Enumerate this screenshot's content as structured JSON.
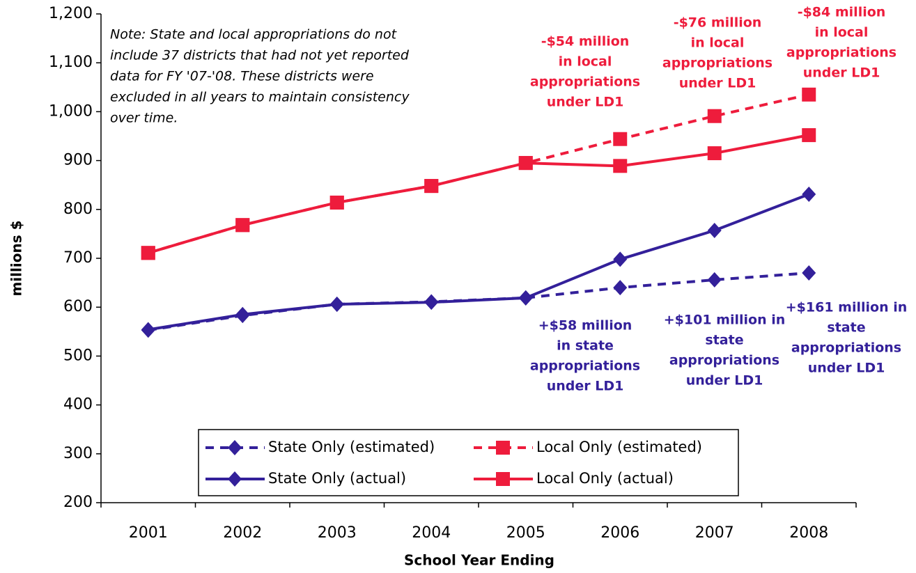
{
  "chart_data": {
    "type": "line",
    "x_label": "School Year Ending",
    "y_label": "millions $",
    "categories": [
      "2001",
      "2002",
      "2003",
      "2004",
      "2005",
      "2006",
      "2007",
      "2008"
    ],
    "ylim": [
      200,
      1200
    ],
    "yticks": [
      200,
      300,
      400,
      500,
      600,
      700,
      800,
      900,
      {
        "value": 1000,
        "label": "1,000"
      },
      {
        "value": 1100,
        "label": "1,100"
      },
      {
        "value": 1200,
        "label": "1,200"
      }
    ],
    "grid": false,
    "series": [
      {
        "name": "State Only (estimated)",
        "color": "#33209a",
        "dashed": true,
        "marker": "diamond",
        "values": [
          553,
          583,
          606,
          611,
          619,
          640,
          656,
          670
        ]
      },
      {
        "name": "Local Only (estimated)",
        "color": "#ee1c3c",
        "dashed": true,
        "marker": "square",
        "values": [
          711,
          768,
          814,
          848,
          895,
          944,
          991,
          1035
        ]
      },
      {
        "name": "State Only (actual)",
        "color": "#33209a",
        "dashed": false,
        "marker": "diamond",
        "values": [
          554,
          585,
          606,
          610,
          619,
          698,
          757,
          831
        ]
      },
      {
        "name": "Local Only (actual)",
        "color": "#ee1c3c",
        "dashed": false,
        "marker": "square",
        "values": [
          711,
          768,
          814,
          848,
          895,
          889,
          915,
          952
        ]
      }
    ],
    "note": [
      "Note:  State and local appropriations do not",
      "include 37 districts that had not yet reported",
      "data for FY '07-'08.  These districts were",
      "excluded in all years to maintain consistency",
      "over time."
    ],
    "annotations": [
      {
        "color": "#ee1c3c",
        "lines": [
          "-$54 million",
          "in local",
          "appropriations",
          "under LD1"
        ]
      },
      {
        "color": "#ee1c3c",
        "lines": [
          "-$76 million",
          "in local",
          "appropriations",
          "under LD1"
        ]
      },
      {
        "color": "#ee1c3c",
        "lines": [
          "-$84 million",
          "in local",
          "appropriations",
          "under LD1"
        ]
      },
      {
        "color": "#33209a",
        "lines": [
          "+$58 million",
          "in state",
          "appropriations",
          "under LD1"
        ]
      },
      {
        "color": "#33209a",
        "lines": [
          "+$101 million in",
          "state",
          "appropriations",
          "under LD1"
        ]
      },
      {
        "color": "#33209a",
        "lines": [
          "+$161 million in",
          "state",
          "appropriations",
          "under LD1"
        ]
      }
    ]
  }
}
